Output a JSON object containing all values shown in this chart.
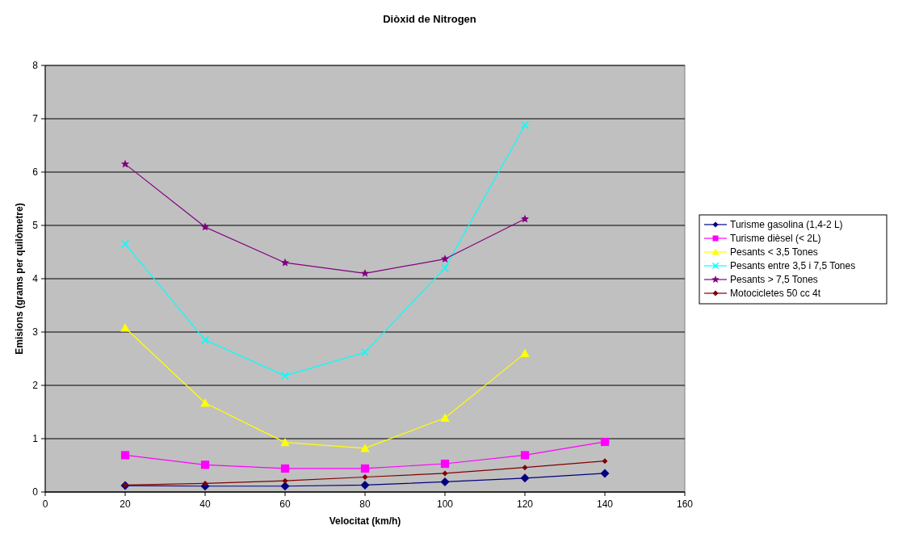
{
  "chart_data": {
    "type": "line",
    "title": "Diòxid de Nitrogen",
    "xlabel": "Velocitat (km/h)",
    "ylabel": "Emisions (grams per quilòmetre)",
    "x": [
      20,
      40,
      60,
      80,
      100,
      120,
      140
    ],
    "xlim": [
      0,
      160
    ],
    "xticks": [
      0,
      20,
      40,
      60,
      80,
      100,
      120,
      140,
      160
    ],
    "ylim": [
      0,
      8
    ],
    "yticks": [
      0,
      1,
      2,
      3,
      4,
      5,
      6,
      7,
      8
    ],
    "grid": "y",
    "legend": "right",
    "series": [
      {
        "name": "Turisme gasolina (1,4-2 L)",
        "color": "#000080",
        "marker": "diamond",
        "values": [
          0.12,
          0.11,
          0.11,
          0.13,
          0.19,
          0.26,
          0.35
        ]
      },
      {
        "name": "Turisme dièsel (< 2L)",
        "color": "#ff00ff",
        "marker": "square",
        "values": [
          0.69,
          0.51,
          0.44,
          0.44,
          0.53,
          0.69,
          0.94
        ]
      },
      {
        "name": "Pesants < 3,5 Tones",
        "color": "#ffff00",
        "marker": "triangle",
        "values": [
          3.08,
          1.67,
          0.93,
          0.82,
          1.39,
          2.6,
          null
        ]
      },
      {
        "name": "Pesants entre 3,5 i 7,5 Tones",
        "color": "#00ffff",
        "marker": "cross",
        "values": [
          4.65,
          2.85,
          2.18,
          2.62,
          4.2,
          6.88,
          null
        ]
      },
      {
        "name": "Pesants > 7,5 Tones",
        "color": "#800080",
        "marker": "star",
        "values": [
          6.15,
          4.97,
          4.3,
          4.1,
          4.37,
          5.12,
          null
        ]
      },
      {
        "name": "Motocicletes 50 cc 4t",
        "color": "#800000",
        "marker": "diamond",
        "values": [
          0.13,
          0.16,
          0.21,
          0.28,
          0.35,
          0.46,
          0.58
        ]
      }
    ]
  }
}
